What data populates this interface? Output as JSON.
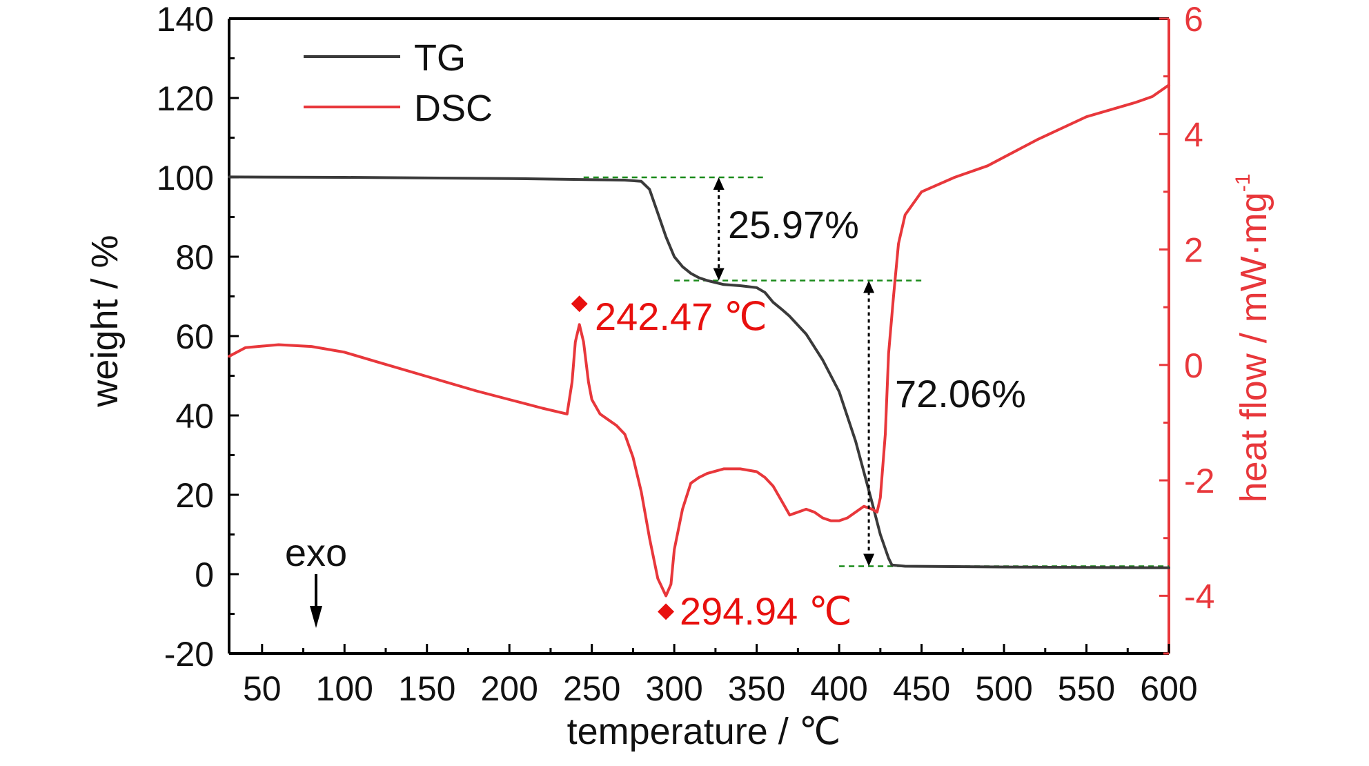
{
  "chart_data": {
    "type": "line",
    "xlabel": "temperature / ℃",
    "ylabel_left": "weight / %",
    "ylabel_right_main": "heat flow / mW·mg",
    "ylabel_right_sup": "-1",
    "xlim": [
      30,
      600
    ],
    "ylim_left": [
      -20,
      140
    ],
    "ylim_right": [
      -5,
      6
    ],
    "x_ticks": [
      50,
      100,
      150,
      200,
      250,
      300,
      350,
      400,
      450,
      500,
      550,
      600
    ],
    "y_left_ticks": [
      -20,
      0,
      20,
      40,
      60,
      80,
      100,
      120,
      140
    ],
    "y_right_ticks": [
      -4,
      -2,
      0,
      2,
      4,
      6
    ],
    "grid": false,
    "legend_position": "top-left",
    "colors": {
      "tg": "#3a3a3a",
      "dsc": "#e8373b",
      "guide": "#1a8a1a",
      "arrow": "#000000",
      "peak_label": "#e8100e"
    },
    "series": [
      {
        "name": "TG",
        "axis": "left",
        "x": [
          30,
          100,
          200,
          250,
          270,
          280,
          285,
          290,
          295,
          300,
          305,
          310,
          315,
          320,
          330,
          340,
          350,
          355,
          360,
          365,
          370,
          380,
          390,
          400,
          410,
          420,
          425,
          430,
          432,
          440,
          500,
          600
        ],
        "y": [
          100.1,
          100.0,
          99.7,
          99.4,
          99.3,
          99.0,
          97.0,
          91.0,
          85.0,
          80.0,
          77.5,
          75.8,
          74.7,
          74.0,
          73.0,
          72.7,
          72.2,
          71.0,
          68.5,
          66.8,
          65.0,
          60.5,
          54.0,
          46.0,
          33.5,
          18.0,
          10.0,
          4.0,
          2.3,
          2.0,
          1.8,
          1.6
        ]
      },
      {
        "name": "DSC",
        "axis": "right",
        "x": [
          30,
          40,
          60,
          80,
          100,
          120,
          150,
          180,
          200,
          220,
          235,
          238,
          240,
          242.47,
          245,
          248,
          250,
          255,
          260,
          265,
          270,
          275,
          280,
          285,
          290,
          294.94,
          298,
          300,
          305,
          310,
          315,
          320,
          330,
          340,
          350,
          355,
          360,
          365,
          370,
          375,
          380,
          385,
          390,
          395,
          400,
          405,
          410,
          415,
          420,
          423,
          425,
          428,
          430,
          433,
          436,
          440,
          450,
          470,
          490,
          500,
          520,
          550,
          580,
          590,
          600
        ],
        "y": [
          0.15,
          0.3,
          0.35,
          0.32,
          0.22,
          0.05,
          -0.2,
          -0.45,
          -0.6,
          -0.75,
          -0.85,
          -0.3,
          0.4,
          0.7,
          0.4,
          -0.3,
          -0.6,
          -0.85,
          -0.95,
          -1.05,
          -1.2,
          -1.6,
          -2.2,
          -3.0,
          -3.7,
          -4.0,
          -3.8,
          -3.2,
          -2.5,
          -2.05,
          -1.95,
          -1.88,
          -1.8,
          -1.8,
          -1.85,
          -1.95,
          -2.1,
          -2.35,
          -2.6,
          -2.55,
          -2.5,
          -2.55,
          -2.65,
          -2.7,
          -2.7,
          -2.65,
          -2.55,
          -2.45,
          -2.5,
          -2.55,
          -2.3,
          -1.2,
          0.2,
          1.2,
          2.1,
          2.6,
          3.0,
          3.25,
          3.45,
          3.6,
          3.9,
          4.3,
          4.55,
          4.65,
          4.85
        ]
      }
    ],
    "annotations": {
      "step1": "25.97%",
      "step2": "72.06%",
      "peak1_label": "242.47 ℃",
      "peak2_label": "294.94 ℃",
      "exo_label": "exo",
      "peak1": {
        "x": 242.47,
        "y": 0.7
      },
      "peak2": {
        "x": 294.94,
        "y": -4.0
      },
      "guides": [
        {
          "x1": 245,
          "x2": 355,
          "y": 100
        },
        {
          "x1": 300,
          "x2": 450,
          "y": 74
        },
        {
          "x1": 400,
          "x2": 600,
          "y": 2
        }
      ],
      "arrows": [
        {
          "x": 327,
          "y1": 100,
          "y2": 74
        },
        {
          "x": 418,
          "y1": 74,
          "y2": 2
        }
      ]
    }
  }
}
